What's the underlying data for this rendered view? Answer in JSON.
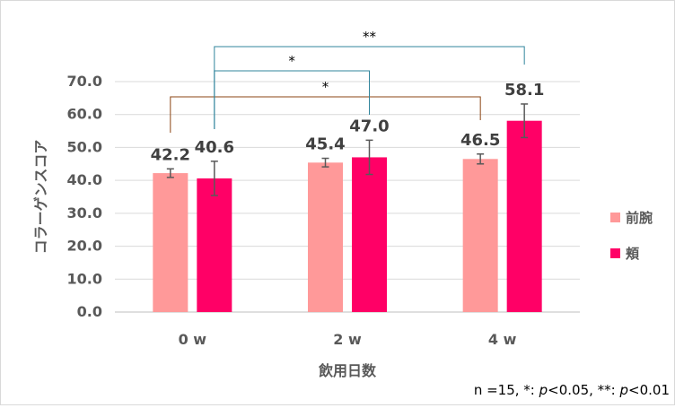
{
  "chart_data": {
    "type": "bar",
    "categories": [
      "0 w",
      "2 w",
      "4 w"
    ],
    "series": [
      {
        "name": "前腕",
        "values": [
          42.2,
          45.4,
          46.5
        ],
        "errors": [
          1.3,
          1.3,
          1.5
        ],
        "color": "#ff9999"
      },
      {
        "name": "頬",
        "values": [
          40.6,
          47.0,
          58.1
        ],
        "errors": [
          5.2,
          5.2,
          5.1
        ],
        "color": "#ff0066"
      }
    ],
    "data_labels": [
      "42.2",
      "45.4",
      "46.5",
      "40.6",
      "47.0",
      "58.1"
    ],
    "ylabel": "コラーゲンスコア",
    "xlabel": "飲用日数",
    "ylim": [
      0,
      70
    ],
    "yticks": [
      "0.0",
      "10.0",
      "20.0",
      "30.0",
      "40.0",
      "50.0",
      "60.0",
      "70.0"
    ],
    "grid": true,
    "legend": "right",
    "significance": [
      {
        "label": "*",
        "color": "#8b4513"
      },
      {
        "label": "*",
        "color": "#31859c"
      },
      {
        "label": "**",
        "color": "#31859c"
      }
    ],
    "footnote": {
      "prefix": "n =15, *: ",
      "p1": "p",
      "mid": "<0.05, **: ",
      "p2": "p",
      "suffix": "<0.01"
    }
  }
}
